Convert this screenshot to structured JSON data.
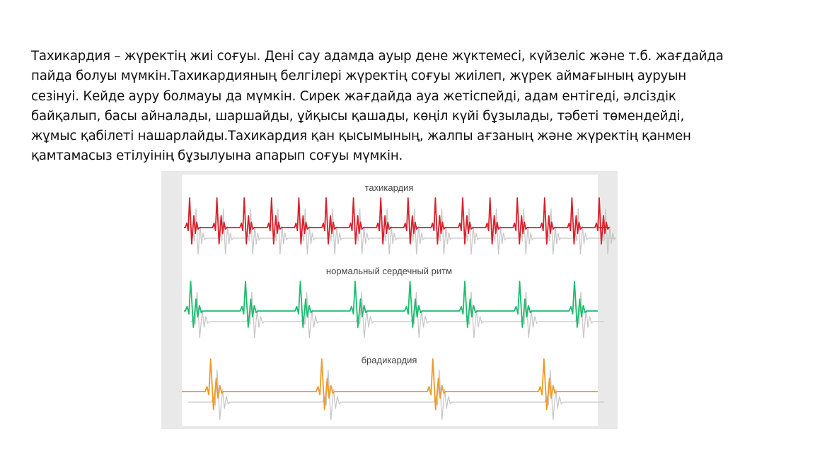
{
  "slide": {
    "paragraph_lines": [
      "Тахикардия – жүректің жиі соғуы. Дені сау адамда ауыр дене жүктемесі, күйзеліс және т.б. жағдайда",
      "пайда болуы мүмкін.Тахикардияның белгілері жүректің соғуы жиілеп, жүрек аймағының ауруын",
      "сезінуі. Кейде ауру болмауы да мүмкін. Сирек жағдайда ауа жетіспейді, адам ентігеді, әлсіздік",
      "байқалып, басы айналады, шаршайды, ұйқысы қашады, көңіл күйі бұзылады, тәбеті төмендейді,",
      "жұмыс қабілеті нашарлайды.Тахикардия қан қысымының, жалпы ағзаның және жүректің қанмен",
      "қамтамасыз етілуінің бұзылуына апарып соғуы мүмкін."
    ]
  },
  "figure": {
    "traces": [
      {
        "label": "тахикардия",
        "color": "#d9202a",
        "beats": 16
      },
      {
        "label": "нормальный сердечный ритм",
        "color": "#1dbb6e",
        "beats": 8
      },
      {
        "label": "брадикардия",
        "color": "#ee9a26",
        "beats": 4
      }
    ],
    "shadow_color": "#c8c8c8"
  }
}
